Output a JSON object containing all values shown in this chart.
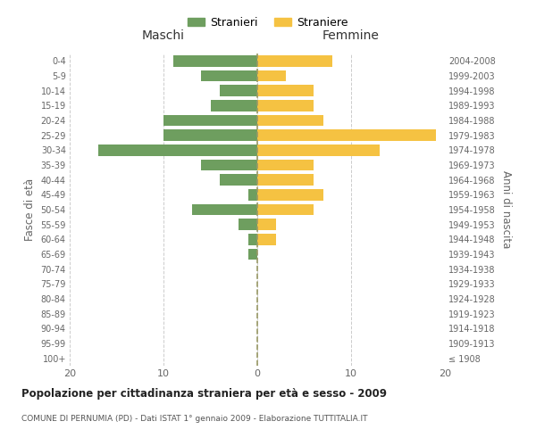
{
  "age_groups": [
    "100+",
    "95-99",
    "90-94",
    "85-89",
    "80-84",
    "75-79",
    "70-74",
    "65-69",
    "60-64",
    "55-59",
    "50-54",
    "45-49",
    "40-44",
    "35-39",
    "30-34",
    "25-29",
    "20-24",
    "15-19",
    "10-14",
    "5-9",
    "0-4"
  ],
  "birth_years": [
    "≤ 1908",
    "1909-1913",
    "1914-1918",
    "1919-1923",
    "1924-1928",
    "1929-1933",
    "1934-1938",
    "1939-1943",
    "1944-1948",
    "1949-1953",
    "1954-1958",
    "1959-1963",
    "1964-1968",
    "1969-1973",
    "1974-1978",
    "1979-1983",
    "1984-1988",
    "1989-1993",
    "1994-1998",
    "1999-2003",
    "2004-2008"
  ],
  "males": [
    0,
    0,
    0,
    0,
    0,
    0,
    0,
    1,
    1,
    2,
    7,
    1,
    4,
    6,
    17,
    10,
    10,
    5,
    4,
    6,
    9
  ],
  "females": [
    0,
    0,
    0,
    0,
    0,
    0,
    0,
    0,
    2,
    2,
    6,
    7,
    6,
    6,
    13,
    19,
    7,
    6,
    6,
    3,
    8
  ],
  "male_color": "#6e9e5f",
  "female_color": "#f5c242",
  "title": "Popolazione per cittadinanza straniera per età e sesso - 2009",
  "subtitle": "COMUNE DI PERNUMIA (PD) - Dati ISTAT 1° gennaio 2009 - Elaborazione TUTTITALIA.IT",
  "xlabel_left": "Maschi",
  "xlabel_right": "Femmine",
  "ylabel_left": "Fasce di età",
  "ylabel_right": "Anni di nascita",
  "legend_male": "Stranieri",
  "legend_female": "Straniere",
  "xlim": 20,
  "background_color": "#ffffff",
  "grid_color": "#cccccc"
}
